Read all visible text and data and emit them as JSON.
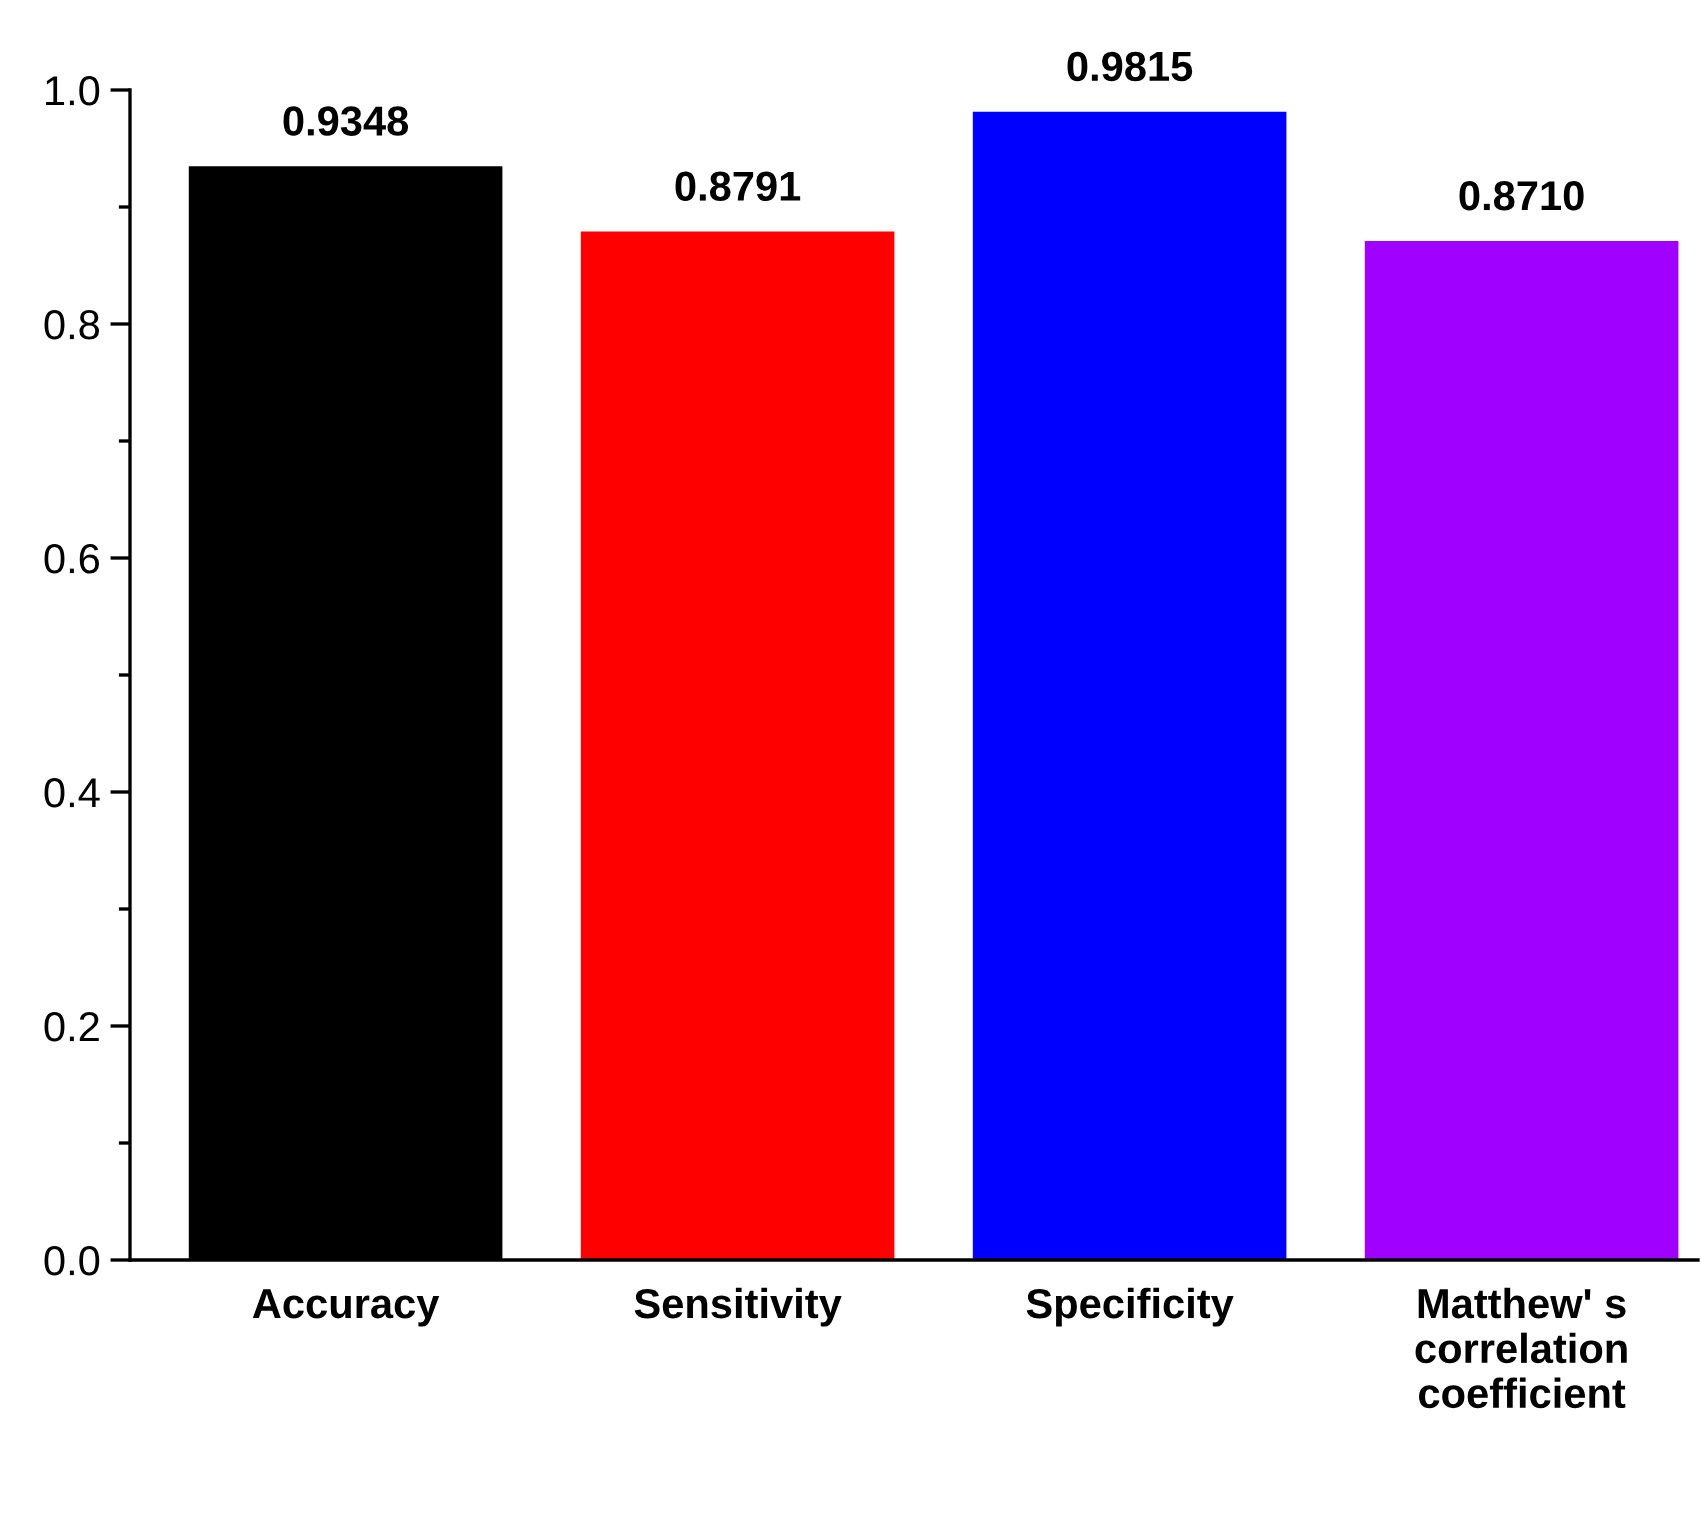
{
  "chart_data": {
    "type": "bar",
    "categories": [
      "Accuracy",
      "Sensitivity",
      "Specificity",
      "Matthew' s\ncorrelation\ncoefficient"
    ],
    "values": [
      0.9348,
      0.8791,
      0.9815,
      0.871
    ],
    "colors": [
      "#000000",
      "#ff0000",
      "#0000ff",
      "#9f00ff"
    ],
    "ylim": [
      0,
      1.0
    ],
    "yticks": [
      {
        "value": 0,
        "label": "0.0"
      },
      {
        "value": 0.1,
        "label": null
      },
      {
        "value": 0.2,
        "label": "0.2"
      },
      {
        "value": 0.3,
        "label": null
      },
      {
        "value": 0.4,
        "label": "0.4"
      },
      {
        "value": 0.5,
        "label": null
      },
      {
        "value": 0.6,
        "label": "0.6"
      },
      {
        "value": 0.7,
        "label": null
      },
      {
        "value": 0.8,
        "label": "0.8"
      },
      {
        "value": 0.9,
        "label": null
      },
      {
        "value": 1.0,
        "label": "1.0"
      }
    ],
    "value_labels": [
      "0.9348",
      "0.8791",
      "0.9815",
      "0.8710"
    ],
    "grid": false,
    "legend": false
  }
}
